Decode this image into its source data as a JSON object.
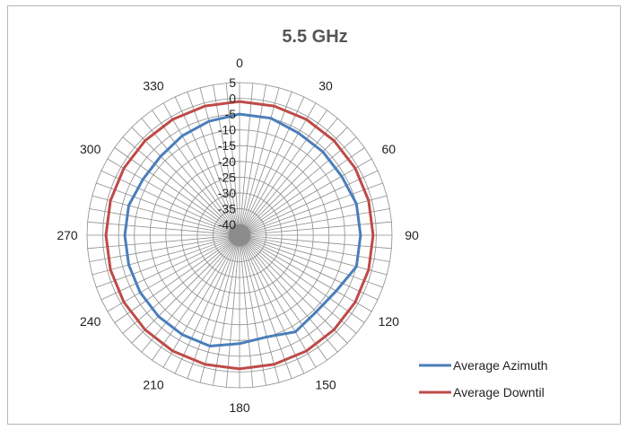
{
  "chart_data": {
    "type": "radar",
    "title": "5.5 GHz",
    "angle_labels": [
      "0",
      "30",
      "60",
      "90",
      "120",
      "150",
      "180",
      "210",
      "240",
      "270",
      "300",
      "330"
    ],
    "radial_ticks": [
      "5",
      "0",
      "-5",
      "-10",
      "-15",
      "-20",
      "-25",
      "-30",
      "-35",
      "-40"
    ],
    "radial_range": [
      -40,
      5
    ],
    "spoke_step_deg": 5,
    "grid": true,
    "legend_position": "bottom-right",
    "series": [
      {
        "name": "Average Azimuth",
        "color": "#4a7ebb",
        "angles": [
          0,
          15,
          30,
          45,
          60,
          75,
          90,
          105,
          120,
          135,
          150,
          165,
          180,
          195,
          210,
          225,
          240,
          255,
          270,
          285,
          300,
          315,
          330,
          345
        ],
        "values": [
          -5,
          -5,
          -6,
          -6,
          -6,
          -5,
          -5,
          -5,
          -8,
          -9,
          -8,
          -10,
          -9,
          -7,
          -7,
          -7,
          -7,
          -7,
          -7,
          -7,
          -8,
          -8,
          -7,
          -6
        ]
      },
      {
        "name": "Average Downtil",
        "color": "#be4b48",
        "angles": [
          0,
          15,
          30,
          45,
          60,
          75,
          90,
          105,
          120,
          135,
          150,
          165,
          180,
          195,
          210,
          225,
          240,
          255,
          270,
          285,
          300,
          315,
          330,
          345
        ],
        "values": [
          -1,
          -1,
          -1,
          -1,
          -1,
          -1,
          -1,
          -1,
          -1,
          -1,
          -1,
          -1,
          -1,
          -1,
          -1,
          -1,
          -1,
          -1,
          -1,
          -1,
          -1,
          -1,
          -1,
          -1
        ]
      }
    ]
  }
}
